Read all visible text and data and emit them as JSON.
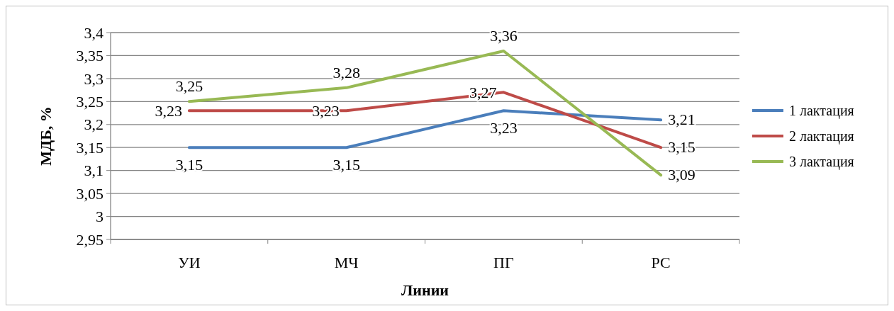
{
  "chart_data": {
    "type": "line",
    "xlabel": "Линии",
    "ylabel": "МДБ, %",
    "categories": [
      "УИ",
      "МЧ",
      "ПГ",
      "РС"
    ],
    "series": [
      {
        "name": "1 лактация",
        "color": "#4a7ebb",
        "values": [
          3.15,
          3.15,
          3.23,
          3.21
        ],
        "value_labels": [
          "3,15",
          "3,15",
          "3,23",
          "3,21"
        ]
      },
      {
        "name": "2 лактация",
        "color": "#be4b48",
        "values": [
          3.23,
          3.23,
          3.27,
          3.15
        ],
        "value_labels": [
          "3,23",
          "3,23",
          "3,27",
          "3,15"
        ]
      },
      {
        "name": "3 лактация",
        "color": "#98b954",
        "values": [
          3.25,
          3.28,
          3.36,
          3.09
        ],
        "value_labels": [
          "3,25",
          "3,28",
          "3,36",
          "3,09"
        ]
      }
    ],
    "ylim": [
      2.95,
      3.4
    ],
    "yticks": [
      {
        "value": 2.95,
        "label": "2,95"
      },
      {
        "value": 3,
        "label": "3"
      },
      {
        "value": 3.05,
        "label": "3,05"
      },
      {
        "value": 3.1,
        "label": "3,1"
      },
      {
        "value": 3.15,
        "label": "3,15"
      },
      {
        "value": 3.2,
        "label": "3,2"
      },
      {
        "value": 3.25,
        "label": "3,25"
      },
      {
        "value": 3.3,
        "label": "3,3"
      },
      {
        "value": 3.35,
        "label": "3,35"
      },
      {
        "value": 3.4,
        "label": "3,4"
      }
    ],
    "grid": "y",
    "legend": "right",
    "marker": "none",
    "line_style": "solid"
  }
}
